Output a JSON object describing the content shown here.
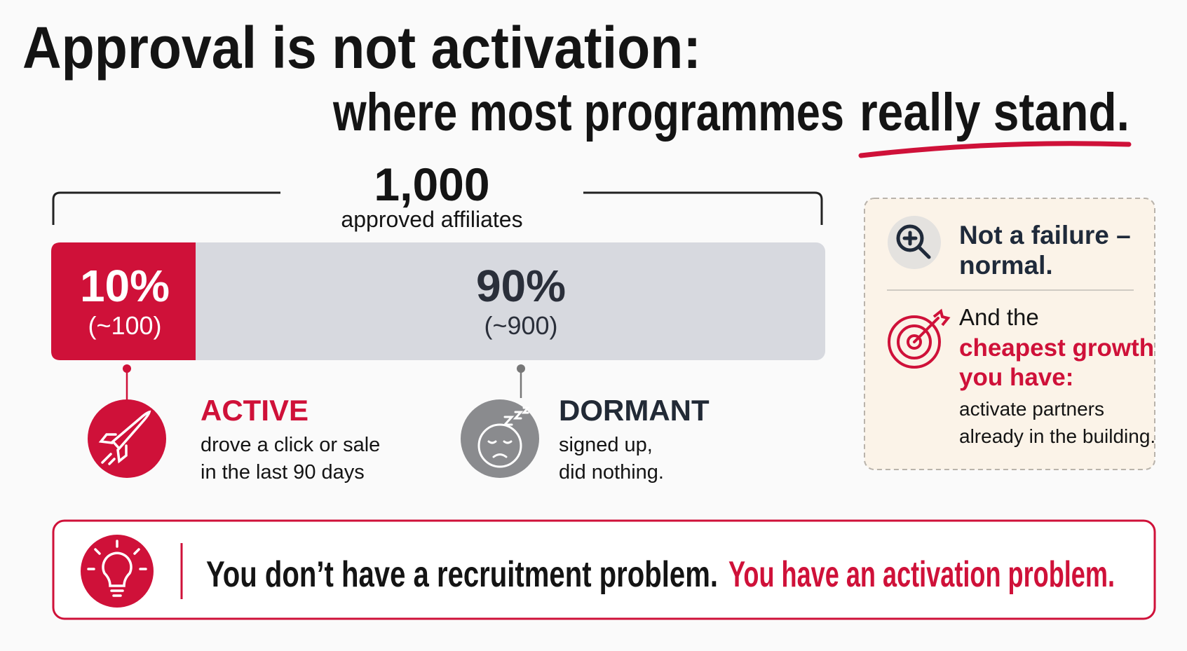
{
  "title": {
    "line1": "Approval is not activation:",
    "line2": "where most programmes",
    "line2_emph": "really stand."
  },
  "total": {
    "value": "1,000",
    "label": "approved affiliates"
  },
  "segments": [
    {
      "pct": "10%",
      "count": "(~100)",
      "name": "ACTIVE",
      "desc": [
        "drove a click or sale",
        "in the last 90 days"
      ]
    },
    {
      "pct": "90%",
      "count": "(~900)",
      "name": "DORMANT",
      "desc": [
        "signed up,",
        "did nothing."
      ]
    }
  ],
  "sidebar": {
    "note": [
      "Not a failure –",
      "normal."
    ],
    "growth_intro": "And the",
    "growth_emph": [
      "cheapest growth",
      "you have:"
    ],
    "growth_body": [
      "activate partners",
      "already in the building."
    ]
  },
  "banner": {
    "text": "You don’t have a recruitment problem.",
    "emph": "You have an activation problem."
  }
}
